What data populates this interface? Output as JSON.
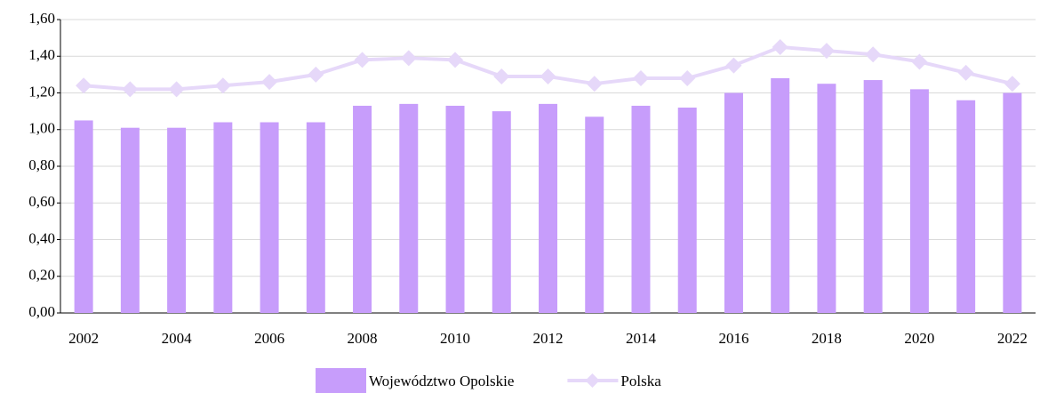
{
  "chart_data": {
    "type": "bar",
    "categories": [
      "2002",
      null,
      "2004",
      null,
      "2006",
      null,
      "2008",
      null,
      "2010",
      null,
      "2012",
      null,
      "2014",
      null,
      "2016",
      null,
      "2018",
      null,
      "2020",
      null,
      "2022"
    ],
    "series": [
      {
        "name": "Województwo Opolskie",
        "type": "bar",
        "color": "#c79dfb",
        "values": [
          1.05,
          1.01,
          1.01,
          1.04,
          1.04,
          1.04,
          1.13,
          1.14,
          1.13,
          1.1,
          1.14,
          1.07,
          1.13,
          1.12,
          1.2,
          1.28,
          1.25,
          1.27,
          1.22,
          1.16,
          1.2
        ]
      },
      {
        "name": "Polska",
        "type": "line",
        "color": "#e6d8f9",
        "values": [
          1.24,
          1.22,
          1.22,
          1.24,
          1.26,
          1.3,
          1.38,
          1.39,
          1.38,
          1.29,
          1.29,
          1.25,
          1.28,
          1.28,
          1.35,
          1.45,
          1.43,
          1.41,
          1.37,
          1.31,
          1.25
        ]
      }
    ],
    "ylim": [
      0,
      1.6
    ],
    "yticks": [
      {
        "value": 0,
        "label": "0,00"
      },
      {
        "value": 0.2,
        "label": "0,20"
      },
      {
        "value": 0.4,
        "label": "0,40"
      },
      {
        "value": 0.6,
        "label": "0,60"
      },
      {
        "value": 0.8,
        "label": "0,80"
      },
      {
        "value": 1.0,
        "label": "1,00"
      },
      {
        "value": 1.2,
        "label": "1,20"
      },
      {
        "value": 1.4,
        "label": "1,40"
      },
      {
        "value": 1.6,
        "label": "1,60"
      }
    ],
    "grid": true,
    "legend": "bottom"
  }
}
